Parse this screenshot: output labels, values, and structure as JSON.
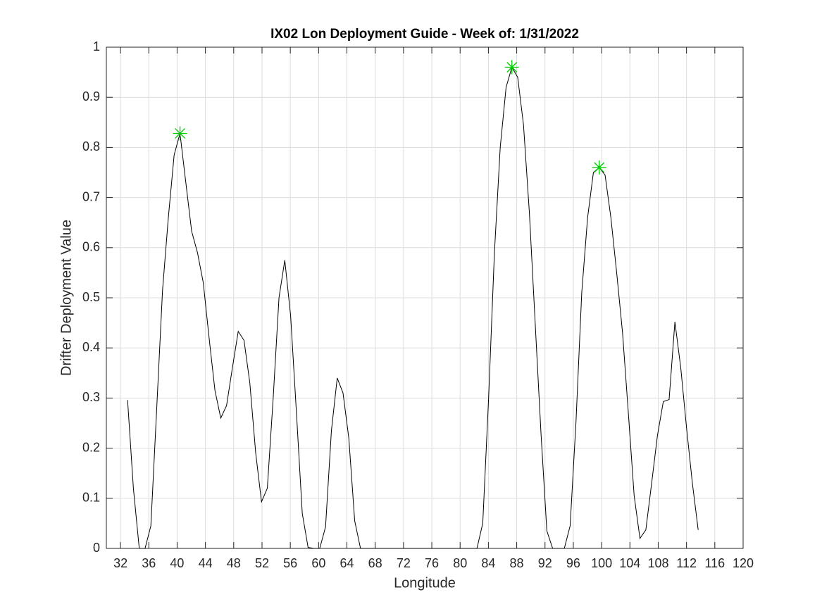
{
  "chart_data": {
    "type": "line",
    "title": "IX02 Lon Deployment Guide - Week of: 1/31/2022",
    "x_label": "Longitude",
    "y_label": "Drifter Deployment Value",
    "xlim": [
      30,
      120
    ],
    "ylim": [
      0,
      1
    ],
    "xticks": [
      32,
      36,
      40,
      44,
      48,
      52,
      56,
      60,
      64,
      68,
      72,
      76,
      80,
      84,
      88,
      92,
      96,
      100,
      104,
      108,
      112,
      116,
      120
    ],
    "yticks": [
      0,
      0.1,
      0.2,
      0.3,
      0.4,
      0.5,
      0.6,
      0.7,
      0.8,
      0.9,
      1
    ],
    "grid": true,
    "series": [
      {
        "color": "#000000",
        "marker": "none",
        "x": [
          33.0,
          33.82,
          34.65,
          35.47,
          36.29,
          37.12,
          37.94,
          38.76,
          39.58,
          40.41,
          41.23,
          42.05,
          42.88,
          43.7,
          44.52,
          45.35,
          46.17,
          46.99,
          47.81,
          48.64,
          49.46,
          50.28,
          51.11,
          51.93,
          52.75,
          53.58,
          54.4,
          55.22,
          56.04,
          56.87,
          57.69,
          58.51,
          59.34,
          60.16,
          60.98,
          61.81,
          62.63,
          63.45,
          64.27,
          65.1,
          65.92,
          66.74,
          67.57,
          68.39,
          69.21,
          70.04,
          70.86,
          71.68,
          72.5,
          73.33,
          74.15,
          74.97,
          75.8,
          76.62,
          77.44,
          78.27,
          79.09,
          79.91,
          80.73,
          81.56,
          82.38,
          83.2,
          84.03,
          84.85,
          85.67,
          86.5,
          87.32,
          88.14,
          88.96,
          89.79,
          90.61,
          91.43,
          92.26,
          93.08,
          93.9,
          94.73,
          95.55,
          96.37,
          97.19,
          98.02,
          98.84,
          99.66,
          100.49,
          101.31,
          102.13,
          102.96,
          103.78,
          104.6,
          105.42,
          106.25,
          107.07,
          107.89,
          108.72,
          109.54,
          110.36,
          111.19,
          112.01,
          112.83,
          113.65
        ],
        "values": [
          0.296,
          0.12,
          0,
          0,
          0.045,
          0.28,
          0.515,
          0.66,
          0.785,
          0.828,
          0.73,
          0.633,
          0.59,
          0.53,
          0.42,
          0.315,
          0.26,
          0.285,
          0.36,
          0.433,
          0.415,
          0.33,
          0.19,
          0.093,
          0.12,
          0.3,
          0.5,
          0.575,
          0.465,
          0.27,
          0.07,
          0.002,
          0,
          0,
          0.043,
          0.235,
          0.34,
          0.31,
          0.22,
          0.055,
          0,
          0,
          0,
          0,
          0,
          0,
          0,
          0,
          0,
          0,
          0,
          0,
          0,
          0,
          0,
          0,
          0,
          0,
          0,
          0,
          0,
          0.05,
          0.3,
          0.59,
          0.8,
          0.92,
          0.96,
          0.94,
          0.845,
          0.67,
          0.45,
          0.23,
          0.035,
          0,
          0,
          0,
          0.045,
          0.25,
          0.51,
          0.66,
          0.75,
          0.76,
          0.745,
          0.66,
          0.55,
          0.43,
          0.27,
          0.105,
          0.02,
          0.037,
          0.13,
          0.225,
          0.293,
          0.297,
          0.452,
          0.36,
          0.24,
          0.13,
          0.037
        ]
      },
      {
        "color": "#00cc00",
        "marker": "asterisk",
        "x": [
          40.41,
          87.32,
          99.66
        ],
        "values": [
          0.828,
          0.96,
          0.76
        ]
      }
    ]
  }
}
